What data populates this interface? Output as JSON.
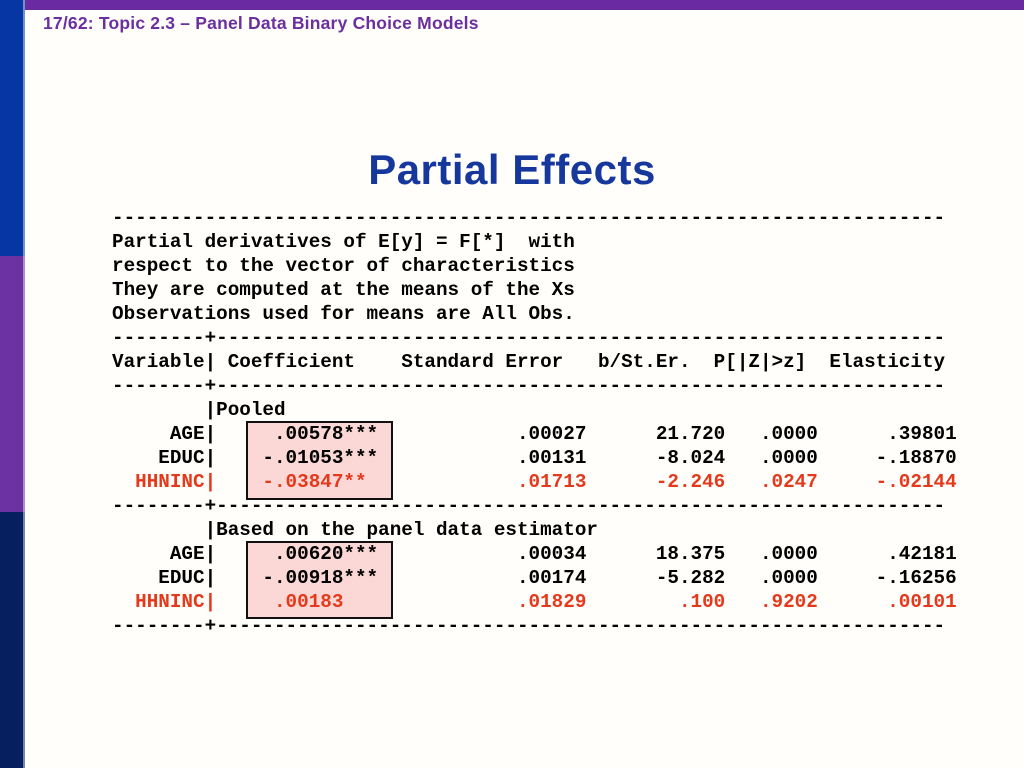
{
  "slide": {
    "header": "17/62: Topic 2.3 – Panel Data Binary Choice Models",
    "title": "Partial Effects"
  },
  "listing": {
    "lines": [
      {
        "text": "------------------------------------------------------------------------",
        "style": "normal"
      },
      {
        "text": "Partial derivatives of E[y] = F[*]  with",
        "style": "normal"
      },
      {
        "text": "respect to the vector of characteristics",
        "style": "normal"
      },
      {
        "text": "They are computed at the means of the Xs",
        "style": "normal"
      },
      {
        "text": "Observations used for means are All Obs.",
        "style": "normal"
      },
      {
        "text": "--------+---------------------------------------------------------------",
        "style": "normal"
      },
      {
        "text": "Variable| Coefficient    Standard Error   b/St.Er.  P[|Z|>z]  Elasticity",
        "style": "normal"
      },
      {
        "text": "--------+---------------------------------------------------------------",
        "style": "normal"
      },
      {
        "text": "        |Pooled",
        "style": "normal"
      },
      {
        "text": "     AGE|     .00578***            .00027      21.720   .0000      .39801",
        "style": "normal"
      },
      {
        "text": "    EDUC|    -.01053***            .00131      -8.024   .0000     -.18870",
        "style": "normal"
      },
      {
        "text": "  HHNINC|    -.03847**             .01713      -2.246   .0247     -.02144",
        "style": "red"
      },
      {
        "text": "--------+---------------------------------------------------------------",
        "style": "normal"
      },
      {
        "text": "        |Based on the panel data estimator",
        "style": "normal"
      },
      {
        "text": "     AGE|     .00620***            .00034      18.375   .0000      .42181",
        "style": "normal"
      },
      {
        "text": "    EDUC|    -.00918***            .00174      -5.282   .0000     -.16256",
        "style": "normal"
      },
      {
        "text": "  HHNINC|     .00183               .01829        .100   .9202      .00101",
        "style": "red"
      },
      {
        "text": "--------+---------------------------------------------------------------",
        "style": "normal"
      }
    ]
  },
  "table": {
    "preamble": [
      "Partial derivatives of E[y] = F[*]  with",
      "respect to the vector of characteristics",
      "They are computed at the means of the Xs",
      "Observations used for means are All Obs."
    ],
    "columns": [
      "Variable",
      "Coefficient",
      "Standard Error",
      "b/St.Er.",
      "P[|Z|>z]",
      "Elasticity"
    ],
    "sections": [
      {
        "label": "Pooled",
        "rows": [
          {
            "variable": "AGE",
            "coefficient": ".00578***",
            "standard_error": ".00027",
            "b_st_er": "21.720",
            "p": ".0000",
            "elasticity": ".39801",
            "highlighted_red": false
          },
          {
            "variable": "EDUC",
            "coefficient": "-.01053***",
            "standard_error": ".00131",
            "b_st_er": "-8.024",
            "p": ".0000",
            "elasticity": "-.18870",
            "highlighted_red": false
          },
          {
            "variable": "HHNINC",
            "coefficient": "-.03847**",
            "standard_error": ".01713",
            "b_st_er": "-2.246",
            "p": ".0247",
            "elasticity": "-.02144",
            "highlighted_red": true
          }
        ]
      },
      {
        "label": "Based on the panel data estimator",
        "rows": [
          {
            "variable": "AGE",
            "coefficient": ".00620***",
            "standard_error": ".00034",
            "b_st_er": "18.375",
            "p": ".0000",
            "elasticity": ".42181",
            "highlighted_red": false
          },
          {
            "variable": "EDUC",
            "coefficient": "-.00918***",
            "standard_error": ".00174",
            "b_st_er": "-5.282",
            "p": ".0000",
            "elasticity": "-.16256",
            "highlighted_red": false
          },
          {
            "variable": "HHNINC",
            "coefficient": ".00183",
            "standard_error": ".01829",
            "b_st_er": ".100",
            "p": ".9202",
            "elasticity": ".00101",
            "highlighted_red": true
          }
        ]
      }
    ]
  },
  "colors": {
    "page_bg": "#fffefa",
    "header_purple": "#6b2fa0",
    "topbar_purple": "#6a2aa1",
    "sidebar_blue": "#0636a4",
    "sidebar_purple": "#6c32a4",
    "sidebar_navy": "#06205f",
    "title_blue": "#16389d",
    "highlight_red": "#e5391c",
    "highlight_pink": "#fbd8d6"
  }
}
